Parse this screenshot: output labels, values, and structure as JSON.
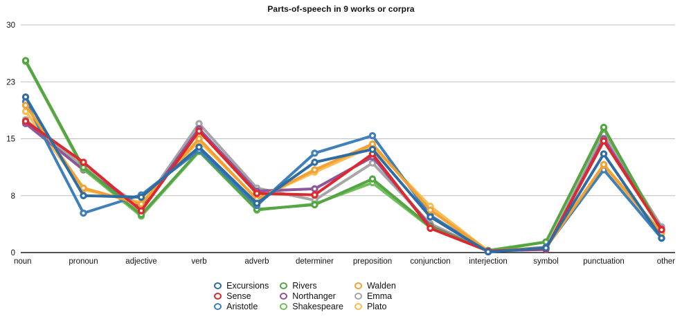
{
  "chart_data": {
    "type": "line",
    "title": "Parts-of-speech in 9 works or corpra",
    "xlabel": "",
    "ylabel": "",
    "ylim": [
      0,
      30
    ],
    "y_tick_labels": [
      "30",
      "23",
      "15",
      "8",
      "0"
    ],
    "grid": true,
    "legend_position": "bottom-center-3-columns",
    "categories": [
      "noun",
      "pronoun",
      "adjective",
      "verb",
      "adverb",
      "determiner",
      "preposition",
      "conjunction",
      "interjection",
      "symbol",
      "punctuation",
      "other"
    ],
    "series": [
      {
        "name": "Excursions",
        "color": "#2d6ca5",
        "values": [
          20.5,
          7.5,
          7.3,
          13.9,
          6.5,
          11.9,
          13.6,
          4.7,
          0.1,
          0.6,
          13.0,
          1.9
        ]
      },
      {
        "name": "Sense",
        "color": "#dd282d",
        "values": [
          17.3,
          11.9,
          5.5,
          16.0,
          7.8,
          7.6,
          13.0,
          3.2,
          0.2,
          0.5,
          14.7,
          3.0
        ]
      },
      {
        "name": "Aristotle",
        "color": "#3f7fba",
        "values": [
          19.9,
          5.2,
          7.6,
          13.5,
          6.2,
          13.1,
          15.4,
          4.9,
          0.1,
          0.7,
          10.9,
          1.9
        ]
      },
      {
        "name": "Rivers",
        "color": "#56a544",
        "values": [
          25.3,
          11.2,
          5.0,
          13.4,
          5.7,
          6.3,
          9.7,
          3.4,
          0.2,
          1.4,
          16.5,
          2.8
        ]
      },
      {
        "name": "Northanger",
        "color": "#8d559c",
        "values": [
          17.0,
          10.9,
          5.9,
          16.3,
          8.1,
          8.4,
          12.6,
          3.5,
          0.2,
          0.4,
          15.0,
          3.1
        ]
      },
      {
        "name": "Shakespeare",
        "color": "#71bf5c",
        "values": [
          25.2,
          11.0,
          4.8,
          13.3,
          5.6,
          6.4,
          9.2,
          3.3,
          0.3,
          1.4,
          16.4,
          2.9
        ]
      },
      {
        "name": "Walden",
        "color": "#f2a233",
        "values": [
          19.4,
          8.5,
          6.4,
          15.0,
          7.0,
          10.9,
          14.3,
          5.6,
          0.2,
          0.6,
          11.6,
          2.6
        ]
      },
      {
        "name": "Emma",
        "color": "#a6a6a6",
        "values": [
          17.5,
          11.3,
          6.0,
          17.0,
          8.5,
          6.9,
          11.8,
          3.8,
          0.2,
          0.5,
          15.6,
          3.4
        ]
      },
      {
        "name": "Plato",
        "color": "#f8be55",
        "values": [
          18.6,
          8.3,
          6.6,
          14.7,
          7.1,
          10.6,
          14.0,
          6.1,
          0.2,
          0.7,
          11.4,
          2.5
        ]
      }
    ],
    "legend_order": [
      "Excursions",
      "Sense",
      "Aristotle",
      "Rivers",
      "Northanger",
      "Shakespeare",
      "Walden",
      "Emma",
      "Plato"
    ],
    "draw_order": [
      "Plato",
      "Emma",
      "Northanger",
      "Shakespeare",
      "Rivers",
      "Aristotle",
      "Walden",
      "Sense",
      "Excursions"
    ]
  }
}
